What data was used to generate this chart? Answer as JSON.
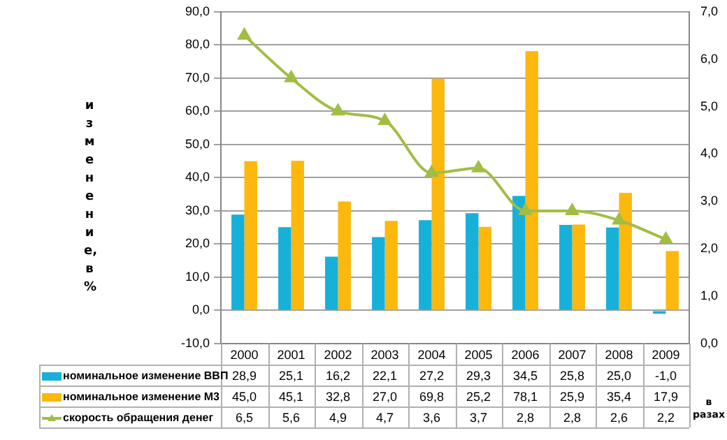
{
  "chart_data": {
    "type": "bar",
    "ylabel": "изменение, в %",
    "y2label": "в разах",
    "categories": [
      "2000",
      "2001",
      "2002",
      "2003",
      "2004",
      "2005",
      "2006",
      "2007",
      "2008",
      "2009"
    ],
    "series": [
      {
        "name": "номинальное изменение ВВП",
        "color": "#17b0d9",
        "values": [
          28.9,
          25.1,
          16.2,
          22.1,
          27.2,
          29.3,
          34.5,
          25.8,
          25.0,
          -1.0
        ],
        "value_labels": [
          "28,9",
          "25,1",
          "16,2",
          "22,1",
          "27,2",
          "29,3",
          "34,5",
          "25,8",
          "25,0",
          "-1,0"
        ]
      },
      {
        "name": "номинальное изменение М3",
        "color": "#fdb80e",
        "values": [
          45.0,
          45.1,
          32.8,
          27.0,
          69.8,
          25.2,
          78.1,
          25.9,
          35.4,
          17.9
        ],
        "value_labels": [
          "45,0",
          "45,1",
          "32,8",
          "27,0",
          "69,8",
          "25,2",
          "78,1",
          "25,9",
          "35,4",
          "17,9"
        ]
      },
      {
        "name": "скорость обращения денег",
        "type": "line",
        "axis": "y2",
        "color": "#a2bd44",
        "values": [
          6.5,
          5.6,
          4.9,
          4.7,
          3.6,
          3.7,
          2.8,
          2.8,
          2.6,
          2.2
        ],
        "value_labels": [
          "6,5",
          "5,6",
          "4,9",
          "4,7",
          "3,6",
          "3,7",
          "2,8",
          "2,8",
          "2,6",
          "2,2"
        ]
      }
    ],
    "ylim": [
      -10,
      90
    ],
    "yticks": [
      {
        "value": -10,
        "label": "-10,0"
      },
      {
        "value": 0,
        "label": "0,0"
      },
      {
        "value": 10,
        "label": "10,0"
      },
      {
        "value": 20,
        "label": "20,0"
      },
      {
        "value": 30,
        "label": "30,0"
      },
      {
        "value": 40,
        "label": "40,0"
      },
      {
        "value": 50,
        "label": "50,0"
      },
      {
        "value": 60,
        "label": "60,0"
      },
      {
        "value": 70,
        "label": "70,0"
      },
      {
        "value": 80,
        "label": "80,0"
      },
      {
        "value": 90,
        "label": "90,0"
      }
    ],
    "y2lim": [
      0,
      7
    ],
    "y2ticks": [
      {
        "value": 0,
        "label": "0,0"
      },
      {
        "value": 1,
        "label": "1,0"
      },
      {
        "value": 2,
        "label": "2,0"
      },
      {
        "value": 3,
        "label": "3,0"
      },
      {
        "value": 4,
        "label": "4,0"
      },
      {
        "value": 5,
        "label": "5,0"
      },
      {
        "value": 6,
        "label": "6,0"
      },
      {
        "value": 7,
        "label": "7,0"
      }
    ],
    "grid": "y",
    "legend": "bottom",
    "marker": "triangle",
    "line_style": "solid"
  }
}
